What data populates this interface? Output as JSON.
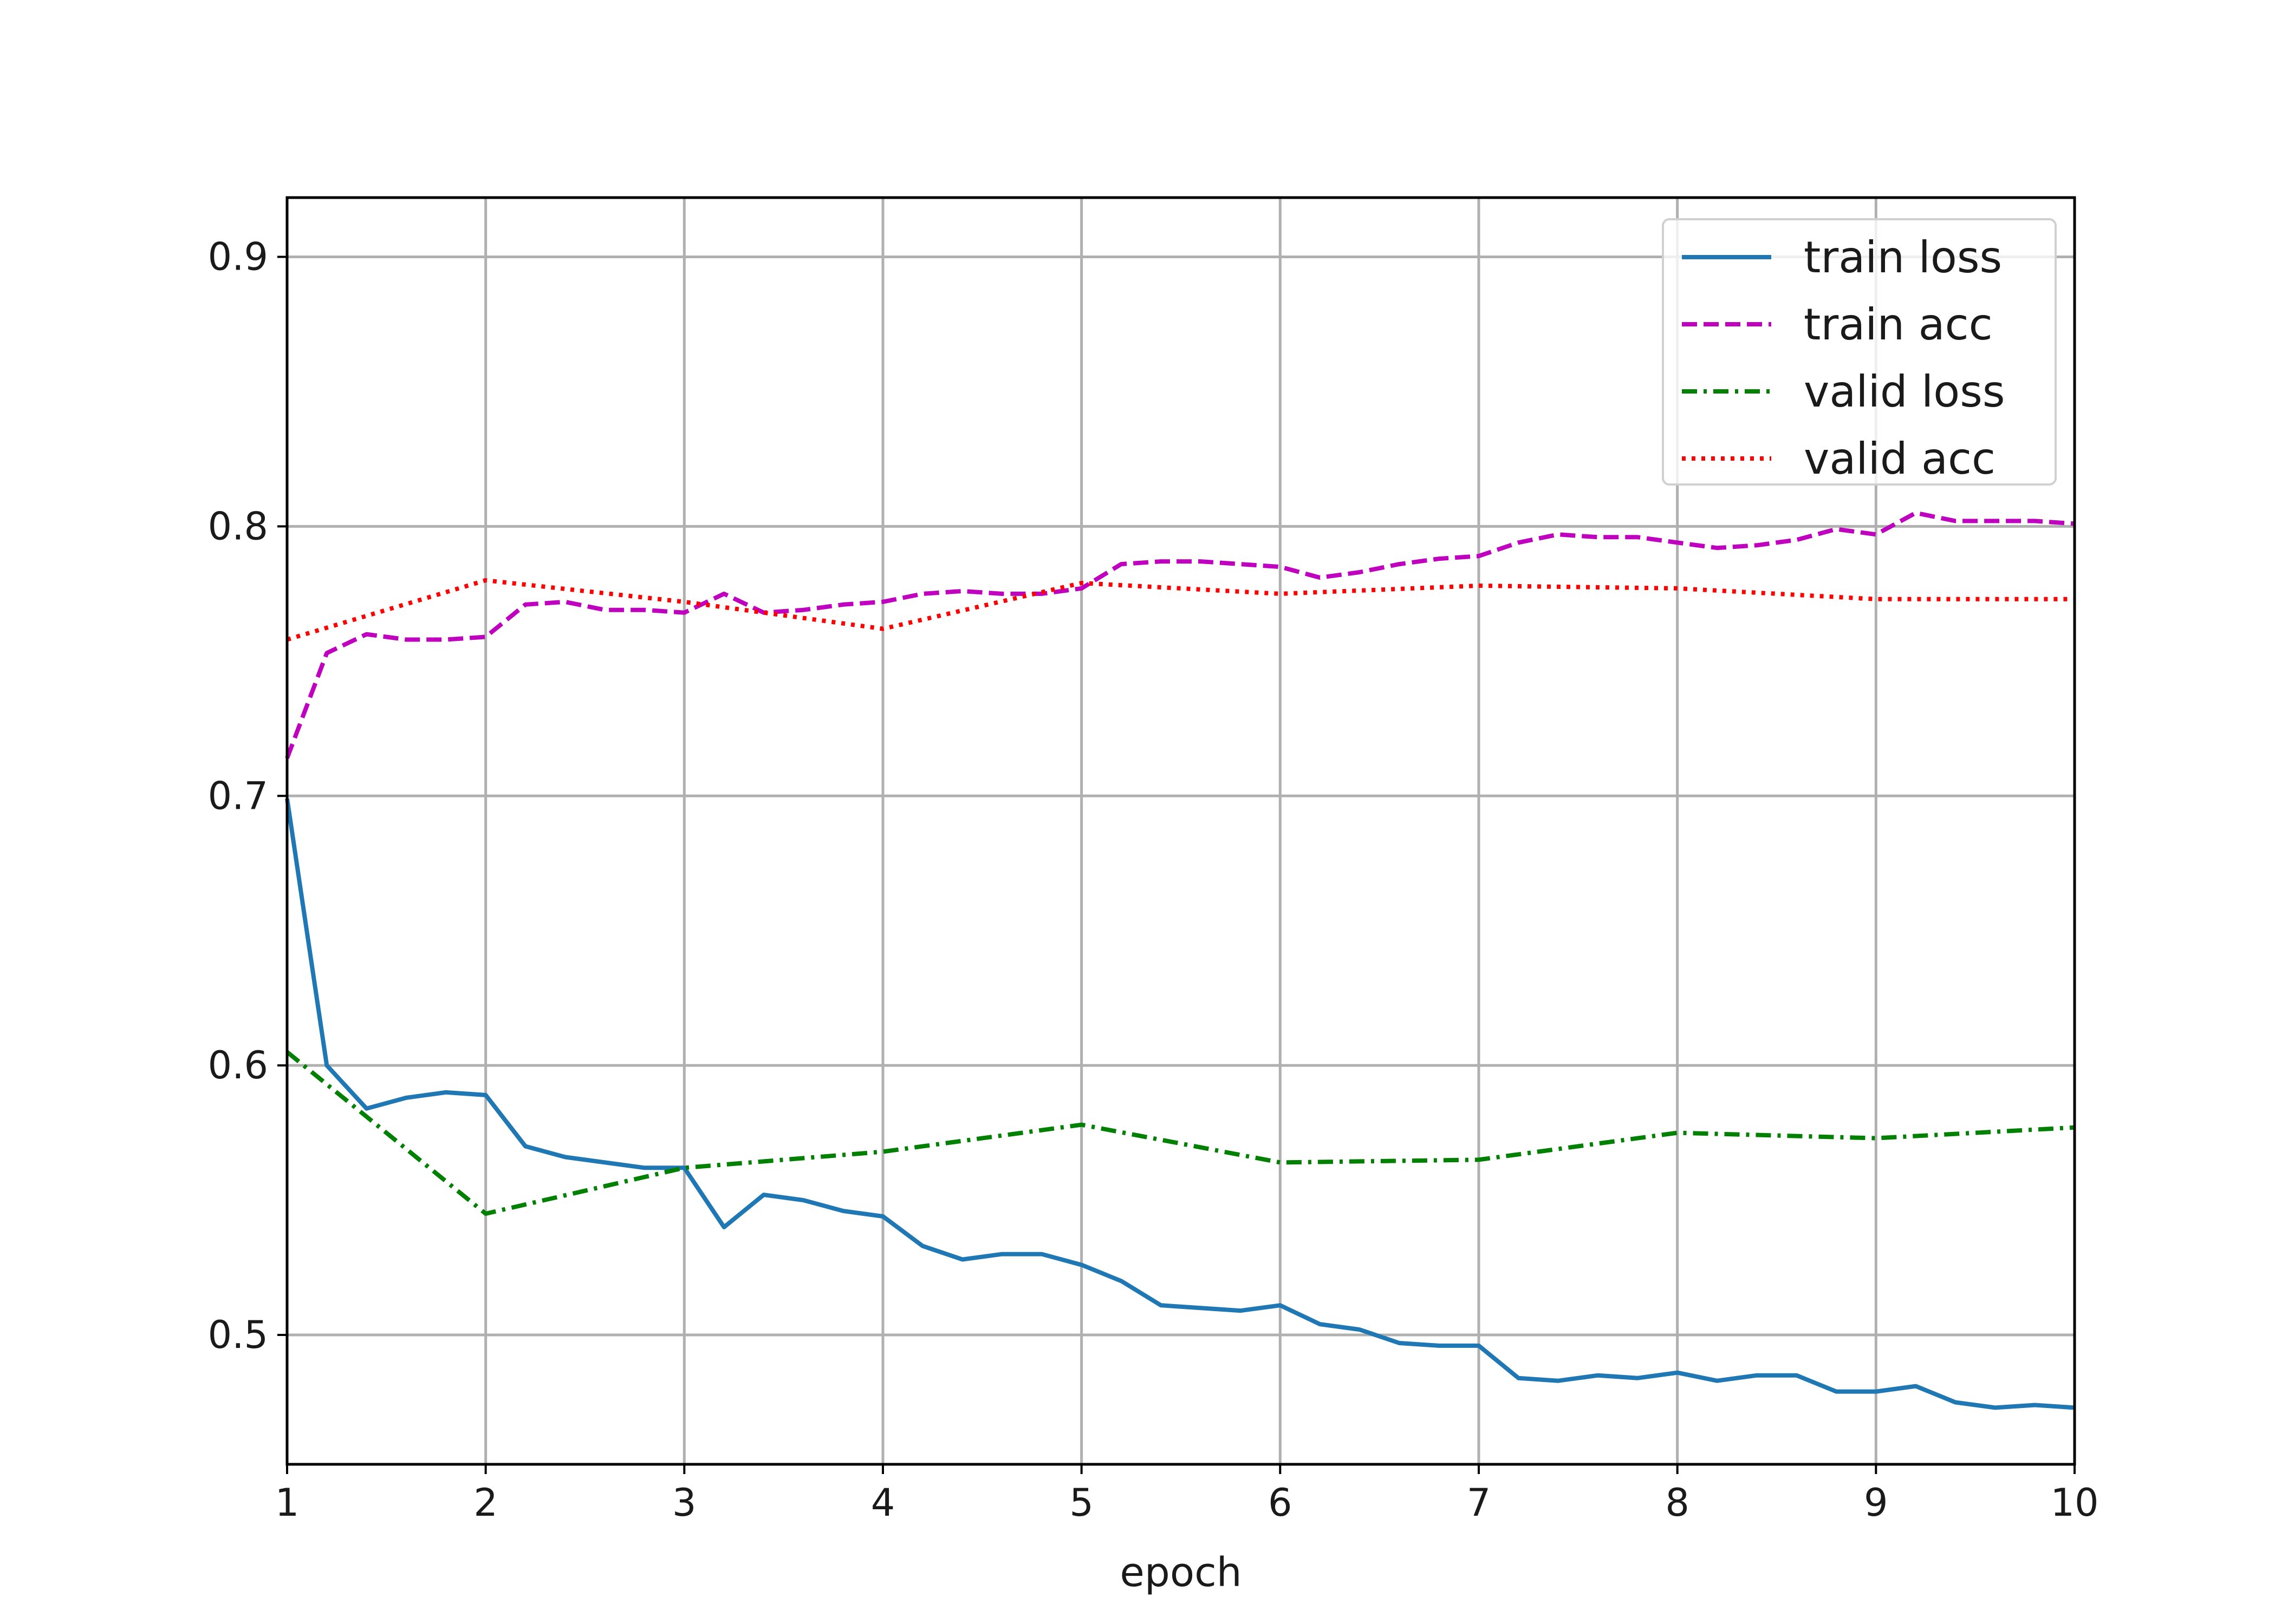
{
  "chart_data": {
    "type": "line",
    "title": "",
    "xlabel": "epoch",
    "ylabel": "",
    "xlim": [
      1,
      10
    ],
    "ylim": [
      0.452,
      0.922
    ],
    "xticks": [
      1,
      2,
      3,
      4,
      5,
      6,
      7,
      8,
      9,
      10
    ],
    "yticks": [
      0.5,
      0.6,
      0.7,
      0.8,
      0.9
    ],
    "ytick_labels": [
      "0.5",
      "0.6",
      "0.7",
      "0.8",
      "0.9"
    ],
    "grid": true,
    "legend_position": "top-right",
    "series": [
      {
        "name": "train loss",
        "color": "#1f77b4",
        "dash": "solid",
        "x": [
          1.0,
          1.2,
          1.4,
          1.6,
          1.8,
          2.0,
          2.2,
          2.4,
          2.6,
          2.8,
          3.0,
          3.2,
          3.4,
          3.6,
          3.8,
          4.0,
          4.2,
          4.4,
          4.6,
          4.8,
          5.0,
          5.2,
          5.4,
          5.6,
          5.8,
          6.0,
          6.2,
          6.4,
          6.6,
          6.8,
          7.0,
          7.2,
          7.4,
          7.6,
          7.8,
          8.0,
          8.2,
          8.4,
          8.6,
          8.8,
          9.0,
          9.2,
          9.4,
          9.6,
          9.8,
          10.0
        ],
        "y": [
          0.699,
          0.6,
          0.584,
          0.588,
          0.59,
          0.589,
          0.57,
          0.566,
          0.564,
          0.562,
          0.562,
          0.54,
          0.552,
          0.55,
          0.546,
          0.544,
          0.533,
          0.528,
          0.53,
          0.53,
          0.526,
          0.52,
          0.511,
          0.51,
          0.509,
          0.511,
          0.504,
          0.502,
          0.497,
          0.496,
          0.496,
          0.484,
          0.483,
          0.485,
          0.484,
          0.486,
          0.483,
          0.485,
          0.485,
          0.479,
          0.479,
          0.481,
          0.475,
          0.473,
          0.474,
          0.473
        ]
      },
      {
        "name": "train acc",
        "color": "#bf00bf",
        "dash": "dashed",
        "x": [
          1.0,
          1.2,
          1.4,
          1.6,
          1.8,
          2.0,
          2.2,
          2.4,
          2.6,
          2.8,
          3.0,
          3.2,
          3.4,
          3.6,
          3.8,
          4.0,
          4.2,
          4.4,
          4.6,
          4.8,
          5.0,
          5.2,
          5.4,
          5.6,
          5.8,
          6.0,
          6.2,
          6.4,
          6.6,
          6.8,
          7.0,
          7.2,
          7.4,
          7.6,
          7.8,
          8.0,
          8.2,
          8.4,
          8.6,
          8.8,
          9.0,
          9.2,
          9.4,
          9.6,
          9.8,
          10.0
        ],
        "y": [
          0.714,
          0.753,
          0.76,
          0.758,
          0.758,
          0.759,
          0.771,
          0.772,
          0.769,
          0.769,
          0.768,
          0.775,
          0.768,
          0.769,
          0.771,
          0.772,
          0.775,
          0.776,
          0.775,
          0.775,
          0.777,
          0.786,
          0.787,
          0.787,
          0.786,
          0.785,
          0.781,
          0.783,
          0.786,
          0.788,
          0.789,
          0.794,
          0.797,
          0.796,
          0.796,
          0.794,
          0.792,
          0.793,
          0.795,
          0.799,
          0.797,
          0.805,
          0.802,
          0.802,
          0.802,
          0.801
        ]
      },
      {
        "name": "valid loss",
        "color": "#008000",
        "dash": "dashdot",
        "x": [
          1,
          2,
          3,
          4,
          5,
          6,
          7,
          8,
          9,
          10
        ],
        "y": [
          0.605,
          0.545,
          0.562,
          0.568,
          0.578,
          0.564,
          0.565,
          0.575,
          0.573,
          0.577
        ]
      },
      {
        "name": "valid acc",
        "color": "#ff0000",
        "dash": "dotted",
        "x": [
          1,
          2,
          3,
          4,
          5,
          6,
          7,
          8,
          9,
          10
        ],
        "y": [
          0.758,
          0.78,
          0.772,
          0.762,
          0.779,
          0.775,
          0.778,
          0.777,
          0.773,
          0.773
        ]
      }
    ]
  }
}
